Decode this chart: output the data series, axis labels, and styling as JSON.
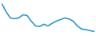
{
  "x": [
    0,
    1,
    2,
    3,
    4,
    5,
    6,
    7,
    8,
    9,
    10,
    11,
    12,
    13,
    14,
    15,
    16,
    17,
    18,
    19,
    20,
    21,
    22
  ],
  "y": [
    10,
    7.5,
    5.5,
    5.3,
    5.5,
    6.5,
    6.3,
    4.5,
    3.0,
    2.8,
    3.5,
    3.0,
    3.8,
    4.5,
    5.0,
    5.5,
    5.2,
    4.5,
    3.0,
    2.0,
    1.8,
    1.5,
    1.2
  ],
  "line_color": "#3399cc",
  "linewidth": 1.2,
  "background_color": "#ffffff",
  "ylim_min": 0,
  "ylim_max": 11
}
